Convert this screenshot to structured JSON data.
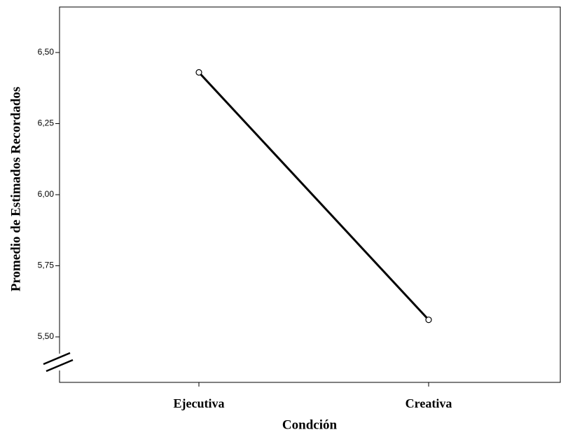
{
  "chart_data": {
    "type": "line",
    "x_label": "Condción",
    "y_label": "Promedio de Estimados Recordados",
    "categories": [
      "Ejecutiva",
      "Creativa"
    ],
    "values": [
      6.43,
      5.56
    ],
    "color": "#000000",
    "ylim": [
      5.34,
      6.66
    ],
    "yticks": [
      {
        "value": 5.5,
        "label": "5,50"
      },
      {
        "value": 5.75,
        "label": "5,75"
      },
      {
        "value": 6.0,
        "label": "6,00"
      },
      {
        "value": 6.25,
        "label": "6,25"
      },
      {
        "value": 6.5,
        "label": "6,50"
      }
    ],
    "grid": false
  }
}
